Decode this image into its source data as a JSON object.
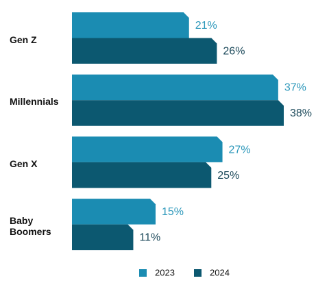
{
  "chart_data": {
    "type": "bar",
    "orientation": "horizontal",
    "categories": [
      "Gen Z",
      "Millennials",
      "Gen X",
      "Baby Boomers"
    ],
    "series": [
      {
        "name": "2023",
        "color": "#1b8cb2",
        "label_color": "#2b97ba",
        "values": [
          21,
          37,
          27,
          15
        ],
        "value_labels": [
          "21%",
          "37%",
          "27%",
          "15%"
        ]
      },
      {
        "name": "2024",
        "color": "#0c5870",
        "label_color": "#1d4a5b",
        "values": [
          26,
          38,
          25,
          11
        ],
        "value_labels": [
          "26%",
          "38%",
          "25%",
          "11%"
        ]
      }
    ]
  }
}
